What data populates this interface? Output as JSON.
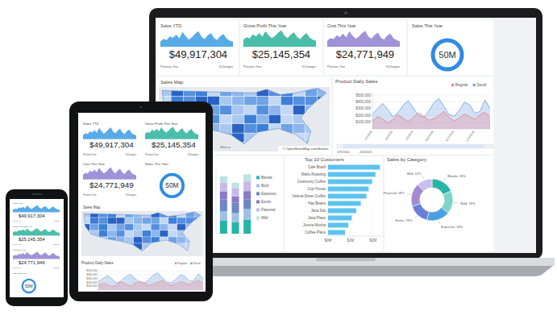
{
  "kpis": [
    {
      "title": "Sales YTD",
      "value": "$49,917,304",
      "previous": "Previous Year",
      "change": "%Changes",
      "color": "#3a9ee4",
      "ylim": [
        0,
        100
      ],
      "trend": [
        30,
        45,
        38,
        60,
        52,
        70,
        48,
        85,
        62,
        40,
        55,
        75,
        90,
        58,
        44,
        66,
        80,
        50,
        38,
        62,
        74,
        46,
        35,
        28
      ]
    },
    {
      "title": "Gross Profit This Year",
      "value": "$25,145,354",
      "previous": "Previous Year",
      "change": "%Changes",
      "color": "#2bb39a",
      "ylim": [
        0,
        100
      ],
      "trend": [
        40,
        55,
        48,
        72,
        60,
        80,
        58,
        90,
        66,
        50,
        62,
        82,
        95,
        64,
        50,
        70,
        84,
        56,
        44,
        66,
        78,
        52,
        40,
        34
      ]
    },
    {
      "title": "Cost This Year",
      "value": "$24,771,949",
      "previous": "Previous Year",
      "change": "%Changes",
      "color": "#8f7fd0",
      "ylim": [
        0,
        100
      ],
      "trend": [
        35,
        50,
        44,
        66,
        56,
        76,
        54,
        88,
        64,
        46,
        58,
        78,
        92,
        60,
        46,
        68,
        82,
        52,
        40,
        64,
        76,
        48,
        38,
        30
      ]
    }
  ],
  "gauge": {
    "title": "Sales This Year",
    "value": "50M",
    "color": "#2f8be6"
  },
  "map": {
    "title": "Sales Map",
    "country_label": "Mexico",
    "attribution": "© OpenStreetMap contributors"
  },
  "chart_data": [
    {
      "type": "area",
      "title": "Product Daily Sales",
      "categories": [
        "1/1/2015",
        null,
        null,
        null,
        "1/5/2015",
        null,
        null,
        null,
        "1/9/2015",
        null,
        null,
        null,
        "1/13/2015",
        null,
        null,
        null,
        "1/17/2015",
        null,
        null,
        null,
        "1/21/2015",
        null,
        null,
        null
      ],
      "series": [
        {
          "name": "Regular",
          "color": "#e8808a",
          "values": [
            120000,
            180000,
            150000,
            90000,
            140000,
            210000,
            160000,
            110000,
            170000,
            240000,
            190000,
            130000,
            150000,
            200000,
            260000,
            170000,
            120000,
            160000,
            220000,
            180000,
            140000,
            210000,
            250000,
            170000
          ]
        },
        {
          "name": "Decaf",
          "color": "#6f9fe0",
          "values": [
            220000,
            300000,
            380000,
            290000,
            180000,
            240000,
            350000,
            420000,
            310000,
            200000,
            170000,
            260000,
            390000,
            450000,
            330000,
            210000,
            190000,
            280000,
            400000,
            360000,
            230000,
            260000,
            430000,
            300000
          ]
        }
      ],
      "ylim": [
        0,
        550000
      ],
      "yticks": [
        {
          "value": 100000,
          "label": "$100,000"
        },
        {
          "value": 200000,
          "label": "$200,000"
        },
        {
          "value": 300000,
          "label": "$300,000"
        },
        {
          "value": 400000,
          "label": "$400,000"
        },
        {
          "value": 500000,
          "label": "$500,000"
        }
      ],
      "grid": true,
      "legend": "top-right",
      "range_labels": [
        "1/9/2014",
        "2/6/2015"
      ]
    },
    {
      "type": "bar",
      "orientation": "horizontal",
      "title": "Top 10 Customers",
      "categories": [
        "Cafe Brazil",
        "Maho Roasting",
        "Ceremony Coffee",
        "Cup House",
        "Velena Street Coffee",
        "Has Beans",
        "Java Slip",
        "Java Place",
        "Jooma Mocha",
        "Coffee Place"
      ],
      "values": [
        2.3,
        2.1,
        1.95,
        1.8,
        1.7,
        1.45,
        1.25,
        1.05,
        0.9,
        0.75
      ],
      "color": "#5cc3ee",
      "xlim": [
        0,
        2.5
      ],
      "xticks": [
        {
          "value": 0,
          "label": "$0M"
        },
        {
          "value": 1,
          "label": "$1M"
        },
        {
          "value": 2,
          "label": "$2M"
        }
      ]
    },
    {
      "type": "pie",
      "title": "Sales by Category",
      "values": [
        18,
        18,
        18,
        16,
        18,
        12
      ],
      "value_labels": [
        "Blends, 18%",
        "Bold, 18%",
        "Espresso, 18%",
        "Exotic, 16%",
        "Flavored, 18%",
        "Mild, 12%"
      ],
      "colors": [
        "#26b5a5",
        "#7fd3c8",
        "#4a9fe0",
        "#6c7fd8",
        "#a48ad4",
        "#cbbdee"
      ],
      "data_labels": true
    },
    {
      "type": "bar",
      "stacked": true,
      "categories": [
        null,
        null,
        null
      ],
      "series": [
        {
          "name": "Blends",
          "color": "#26b5a5",
          "values": [
            20,
            18,
            22
          ]
        },
        {
          "name": "Bold",
          "color": "#9cc3e6",
          "values": [
            15,
            14,
            16
          ]
        },
        {
          "name": "Espresso",
          "color": "#6f87c4",
          "values": [
            18,
            16,
            15
          ]
        },
        {
          "name": "Exotic",
          "color": "#8a79c9",
          "values": [
            12,
            10,
            13
          ]
        },
        {
          "name": "Flavored",
          "color": "#c8b8e8",
          "values": [
            14,
            12,
            15
          ]
        },
        {
          "name": "Mild",
          "color": "#b9e4df",
          "values": [
            10,
            9,
            11
          ]
        }
      ],
      "ylim": [
        0,
        100
      ],
      "legend": "right",
      "tick_labels": false
    }
  ]
}
